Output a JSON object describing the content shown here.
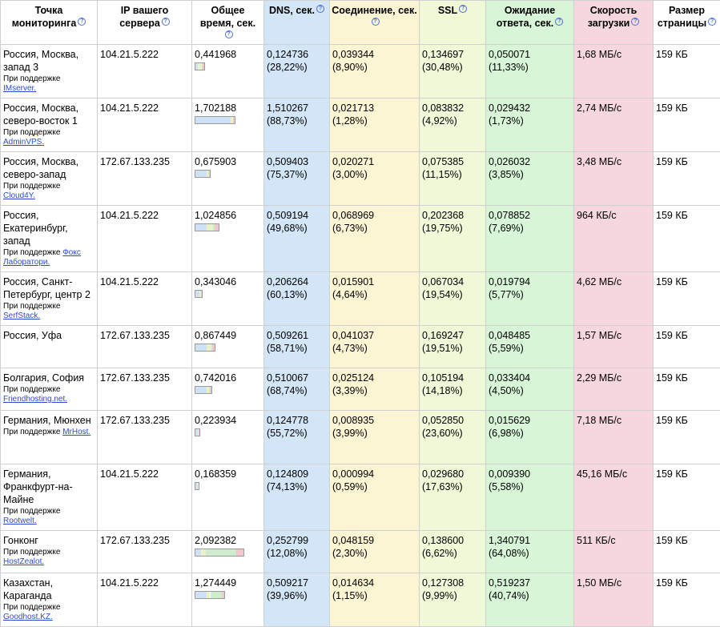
{
  "headers": {
    "location": "Точка мониторинга",
    "ip": "IP вашего сервера",
    "total": "Общее время, сек.",
    "dns": "DNS, сек.",
    "connect": "Соединение, сек.",
    "ssl": "SSL",
    "wait": "Ожидание ответа, сек.",
    "speed": "Скорость загрузки",
    "size": "Размер страницы"
  },
  "help_icon": "question-mark-icon",
  "colors": {
    "dns": "#d2e6f7",
    "connect": "#fbf5d4",
    "ssl": "#f0f8d8",
    "wait": "#d8f5d8",
    "speed": "#f7d7de",
    "link": "#2a4bd0"
  },
  "rows": [
    {
      "location": "Россия, Москва, запад 3",
      "support_prefix": "При поддержке",
      "provider": "IMserver.",
      "ip": "104.21.5.222",
      "total": "0,441968",
      "dns": "0,124736",
      "dns_pct": "(28,22%)",
      "connect": "0,039344",
      "connect_pct": "(8,90%)",
      "ssl": "0,134697",
      "ssl_pct": "(30,48%)",
      "wait": "0,050071",
      "wait_pct": "(11,33%)",
      "speed": "1,68 МБ/с",
      "size": "159 КБ"
    },
    {
      "location": "Россия, Москва, северо-восток 1",
      "support_prefix": "При поддержке",
      "provider": "AdminVPS.",
      "ip": "104.21.5.222",
      "total": "1,702188",
      "dns": "1,510267",
      "dns_pct": "(88,73%)",
      "connect": "0,021713",
      "connect_pct": "(1,28%)",
      "ssl": "0,083832",
      "ssl_pct": "(4,92%)",
      "wait": "0,029432",
      "wait_pct": "(1,73%)",
      "speed": "2,74 МБ/с",
      "size": "159 КБ"
    },
    {
      "location": "Россия, Москва, северо-запад",
      "support_prefix": "При поддержке",
      "provider": "Cloud4Y.",
      "ip": "172.67.133.235",
      "total": "0,675903",
      "dns": "0,509403",
      "dns_pct": "(75,37%)",
      "connect": "0,020271",
      "connect_pct": "(3,00%)",
      "ssl": "0,075385",
      "ssl_pct": "(11,15%)",
      "wait": "0,026032",
      "wait_pct": "(3,85%)",
      "speed": "3,48 МБ/с",
      "size": "159 КБ"
    },
    {
      "location": "Россия, Екатеринбург, запад",
      "support_prefix": "При поддержке",
      "provider": "Фокс Лаборатори.",
      "ip": "104.21.5.222",
      "total": "1,024856",
      "dns": "0,509194",
      "dns_pct": "(49,68%)",
      "connect": "0,068969",
      "connect_pct": "(6,73%)",
      "ssl": "0,202368",
      "ssl_pct": "(19,75%)",
      "wait": "0,078852",
      "wait_pct": "(7,69%)",
      "speed": "964 КБ/с",
      "size": "159 КБ"
    },
    {
      "location": "Россия, Санкт-Петербург, центр 2",
      "support_prefix": "При поддержке",
      "provider": "SerfStack.",
      "ip": "104.21.5.222",
      "total": "0,343046",
      "dns": "0,206264",
      "dns_pct": "(60,13%)",
      "connect": "0,015901",
      "connect_pct": "(4,64%)",
      "ssl": "0,067034",
      "ssl_pct": "(19,54%)",
      "wait": "0,019794",
      "wait_pct": "(5,77%)",
      "speed": "4,62 МБ/с",
      "size": "159 КБ"
    },
    {
      "location": "Россия, Уфа",
      "support_prefix": "",
      "provider": "",
      "ip": "172.67.133.235",
      "total": "0,867449",
      "dns": "0,509261",
      "dns_pct": "(58,71%)",
      "connect": "0,041037",
      "connect_pct": "(4,73%)",
      "ssl": "0,169247",
      "ssl_pct": "(19,51%)",
      "wait": "0,048485",
      "wait_pct": "(5,59%)",
      "speed": "1,57 МБ/с",
      "size": "159 КБ"
    },
    {
      "location": "Болгария, София",
      "support_prefix": "При поддержке",
      "provider": "Friendhosting.net.",
      "ip": "172.67.133.235",
      "total": "0,742016",
      "dns": "0,510067",
      "dns_pct": "(68,74%)",
      "connect": "0,025124",
      "connect_pct": "(3,39%)",
      "ssl": "0,105194",
      "ssl_pct": "(14,18%)",
      "wait": "0,033404",
      "wait_pct": "(4,50%)",
      "speed": "2,29 МБ/с",
      "size": "159 КБ"
    },
    {
      "location": "Германия, Мюнхен",
      "support_prefix": "При поддержке",
      "provider": "MrHost.",
      "ip": "172.67.133.235",
      "total": "0,223934",
      "dns": "0,124778",
      "dns_pct": "(55,72%)",
      "connect": "0,008935",
      "connect_pct": "(3,99%)",
      "ssl": "0,052850",
      "ssl_pct": "(23,60%)",
      "wait": "0,015629",
      "wait_pct": "(6,98%)",
      "speed": "7,18 МБ/с",
      "size": "159 КБ"
    },
    {
      "location": "Германия, Франкфурт-на-Майне",
      "support_prefix": "При поддержке",
      "provider": "Rootwelt.",
      "ip": "104.21.5.222",
      "total": "0,168359",
      "dns": "0,124809",
      "dns_pct": "(74,13%)",
      "connect": "0,000994",
      "connect_pct": "(0,59%)",
      "ssl": "0,029680",
      "ssl_pct": "(17,63%)",
      "wait": "0,009390",
      "wait_pct": "(5,58%)",
      "speed": "45,16 МБ/с",
      "size": "159 КБ"
    },
    {
      "location": "Гонконг",
      "support_prefix": "При поддержке",
      "provider": "HostZealot.",
      "ip": "172.67.133.235",
      "total": "2,092382",
      "dns": "0,252799",
      "dns_pct": "(12,08%)",
      "connect": "0,048159",
      "connect_pct": "(2,30%)",
      "ssl": "0,138600",
      "ssl_pct": "(6,62%)",
      "wait": "1,340791",
      "wait_pct": "(64,08%)",
      "speed": "511 КБ/с",
      "size": "159 КБ"
    },
    {
      "location": "Казахстан, Караганда",
      "support_prefix": "При поддержке",
      "provider": "Goodhost.KZ.",
      "ip": "104.21.5.222",
      "total": "1,274449",
      "dns": "0,509217",
      "dns_pct": "(39,96%)",
      "connect": "0,014634",
      "connect_pct": "(1,15%)",
      "ssl": "0,127308",
      "ssl_pct": "(9,99%)",
      "wait": "0,519237",
      "wait_pct": "(40,74%)",
      "speed": "1,50 МБ/с",
      "size": "159 КБ"
    }
  ]
}
